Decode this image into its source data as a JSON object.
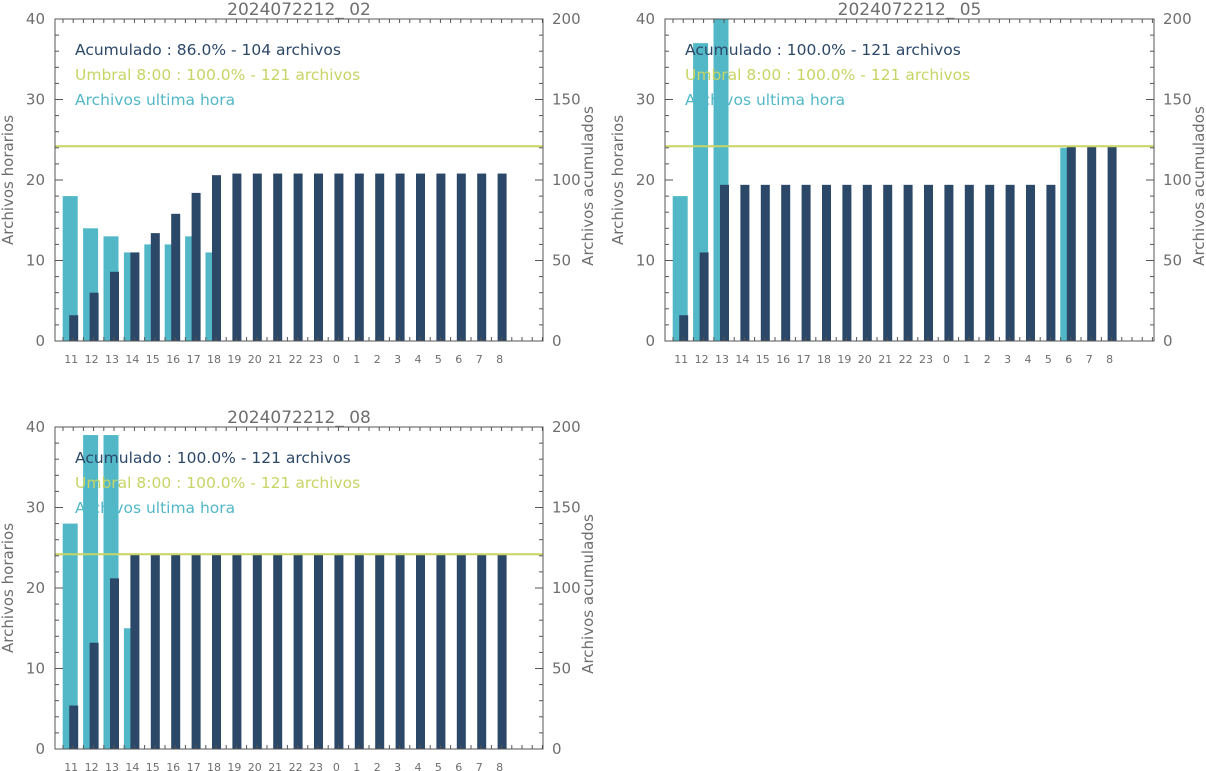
{
  "colors": {
    "hourly": "#52b8c8",
    "cumulative": "#2c4868",
    "threshold": "#c8d464",
    "text": "#6e6e6e"
  },
  "chart_data": [
    {
      "type": "bar",
      "title": "2024072212_ 02",
      "categories": [
        "11",
        "12",
        "13",
        "14",
        "15",
        "16",
        "17",
        "18",
        "19",
        "20",
        "21",
        "22",
        "23",
        "0",
        "1",
        "2",
        "3",
        "4",
        "5",
        "6",
        "7",
        "8"
      ],
      "ylabel_left": "Archivos horarios",
      "ylabel_right": "Archivos acumulados",
      "ylim_left": [
        0,
        40
      ],
      "ylim_right": [
        0,
        200
      ],
      "yticks_left": [
        "0",
        "10",
        "20",
        "30",
        "40"
      ],
      "yticks_right": [
        "0",
        "50",
        "100",
        "150",
        "200"
      ],
      "series": [
        {
          "name": "Archivos ultima hora",
          "axis": "left",
          "values": [
            18,
            14,
            13,
            11,
            12,
            12,
            13,
            11,
            0,
            0,
            0,
            0,
            0,
            0,
            0,
            0,
            0,
            0,
            0,
            0,
            0,
            0
          ]
        },
        {
          "name": "Acumulado",
          "axis": "right",
          "values": [
            16,
            30,
            43,
            55,
            67,
            79,
            92,
            103,
            104,
            104,
            104,
            104,
            104,
            104,
            104,
            104,
            104,
            104,
            104,
            104,
            104,
            104
          ]
        }
      ],
      "threshold": {
        "value": 121,
        "axis": "right"
      },
      "legend": [
        {
          "text": "Acumulado : 86.0% - 104 archivos",
          "color": "cumulative"
        },
        {
          "text": "Umbral 8:00 : 100.0% - 121 archivos",
          "color": "threshold"
        },
        {
          "text": "Archivos ultima hora",
          "color": "hourly"
        }
      ]
    },
    {
      "type": "bar",
      "title": "2024072212_ 05",
      "categories": [
        "11",
        "12",
        "13",
        "14",
        "15",
        "16",
        "17",
        "18",
        "19",
        "20",
        "21",
        "22",
        "23",
        "0",
        "1",
        "2",
        "3",
        "4",
        "5",
        "6",
        "7",
        "8"
      ],
      "ylabel_left": "Archivos horarios",
      "ylabel_right": "Archivos acumulados",
      "ylim_left": [
        0,
        40
      ],
      "ylim_right": [
        0,
        200
      ],
      "yticks_left": [
        "0",
        "10",
        "20",
        "30",
        "40"
      ],
      "yticks_right": [
        "0",
        "50",
        "100",
        "150",
        "200"
      ],
      "series": [
        {
          "name": "Archivos ultima hora",
          "axis": "left",
          "values": [
            18,
            37,
            43,
            0,
            0,
            0,
            0,
            0,
            0,
            0,
            0,
            0,
            0,
            0,
            0,
            0,
            0,
            0,
            0,
            24,
            0,
            0
          ]
        },
        {
          "name": "Acumulado",
          "axis": "right",
          "values": [
            16,
            55,
            97,
            97,
            97,
            97,
            97,
            97,
            97,
            97,
            97,
            97,
            97,
            97,
            97,
            97,
            97,
            97,
            97,
            121,
            121,
            121
          ]
        }
      ],
      "threshold": {
        "value": 121,
        "axis": "right"
      },
      "legend": [
        {
          "text": "Acumulado : 100.0% - 121 archivos",
          "color": "cumulative"
        },
        {
          "text": "Umbral 8:00 : 100.0% - 121 archivos",
          "color": "threshold"
        },
        {
          "text": "Archivos ultima hora",
          "color": "hourly"
        }
      ]
    },
    {
      "type": "bar",
      "title": "2024072212_ 08",
      "categories": [
        "11",
        "12",
        "13",
        "14",
        "15",
        "16",
        "17",
        "18",
        "19",
        "20",
        "21",
        "22",
        "23",
        "0",
        "1",
        "2",
        "3",
        "4",
        "5",
        "6",
        "7",
        "8"
      ],
      "ylabel_left": "Archivos horarios",
      "ylabel_right": "Archivos acumulados",
      "ylim_left": [
        0,
        40
      ],
      "ylim_right": [
        0,
        200
      ],
      "yticks_left": [
        "0",
        "10",
        "20",
        "30",
        "40"
      ],
      "yticks_right": [
        "0",
        "50",
        "100",
        "150",
        "200"
      ],
      "series": [
        {
          "name": "Archivos ultima hora",
          "axis": "left",
          "values": [
            28,
            39,
            39,
            15,
            0,
            0,
            0,
            0,
            0,
            0,
            0,
            0,
            0,
            0,
            0,
            0,
            0,
            0,
            0,
            0,
            0,
            0
          ]
        },
        {
          "name": "Acumulado",
          "axis": "right",
          "values": [
            27,
            66,
            106,
            121,
            121,
            121,
            121,
            121,
            121,
            121,
            121,
            121,
            121,
            121,
            121,
            121,
            121,
            121,
            121,
            121,
            121,
            121
          ]
        }
      ],
      "threshold": {
        "value": 121,
        "axis": "right"
      },
      "legend": [
        {
          "text": "Acumulado : 100.0% - 121 archivos",
          "color": "cumulative"
        },
        {
          "text": "Umbral 8:00 : 100.0% - 121 archivos",
          "color": "threshold"
        },
        {
          "text": "Archivos ultima hora",
          "color": "hourly"
        }
      ]
    }
  ]
}
